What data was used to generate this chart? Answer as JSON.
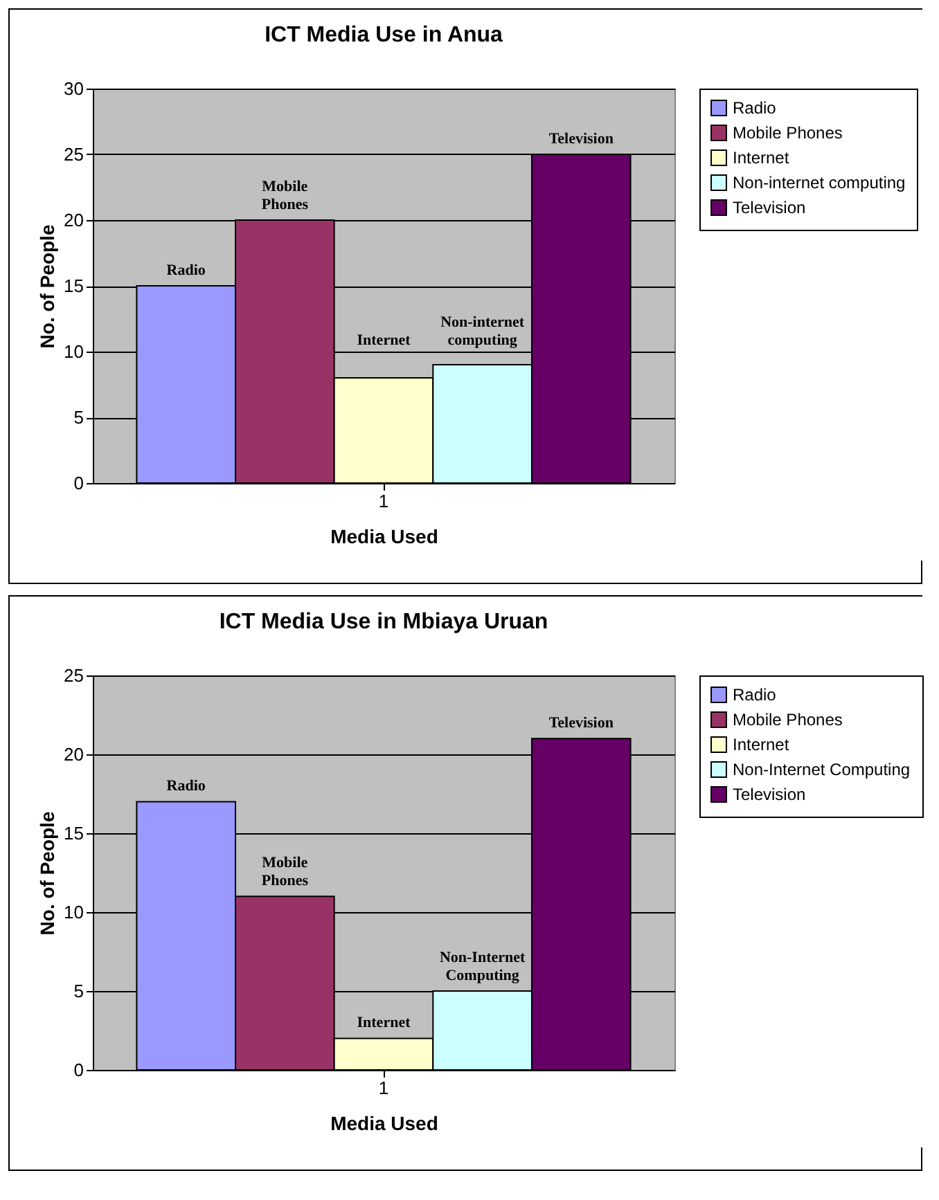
{
  "chart_data": [
    {
      "type": "bar",
      "title": "ICT Media Use in Anua",
      "xlabel": "Media Used",
      "ylabel": "No. of People",
      "categories": [
        "1"
      ],
      "ylim": [
        0,
        30
      ],
      "yticks": [
        0,
        5,
        10,
        15,
        20,
        25,
        30
      ],
      "grid": "y",
      "legend": "right",
      "series": [
        {
          "name": "Radio",
          "color": "#9999ff",
          "values": [
            15
          ]
        },
        {
          "name": "Mobile Phones",
          "color": "#993366",
          "values": [
            20
          ]
        },
        {
          "name": "Internet",
          "color": "#ffffcc",
          "values": [
            8
          ]
        },
        {
          "name": "Non-internet computing",
          "color": "#ccffff",
          "values": [
            9
          ]
        },
        {
          "name": "Television",
          "color": "#660066",
          "values": [
            25
          ]
        }
      ]
    },
    {
      "type": "bar",
      "title": "ICT Media Use in Mbiaya Uruan",
      "xlabel": "Media Used",
      "ylabel": "No. of People",
      "categories": [
        "1"
      ],
      "ylim": [
        0,
        25
      ],
      "yticks": [
        0,
        5,
        10,
        15,
        20,
        25
      ],
      "grid": "y",
      "legend": "right",
      "series": [
        {
          "name": "Radio",
          "color": "#9999ff",
          "values": [
            17
          ]
        },
        {
          "name": "Mobile Phones",
          "color": "#993366",
          "values": [
            11
          ]
        },
        {
          "name": "Internet",
          "color": "#ffffcc",
          "values": [
            2
          ]
        },
        {
          "name": "Non-Internet Computing",
          "color": "#ccffff",
          "values": [
            5
          ]
        },
        {
          "name": "Television",
          "color": "#660066",
          "values": [
            21
          ]
        }
      ]
    }
  ]
}
